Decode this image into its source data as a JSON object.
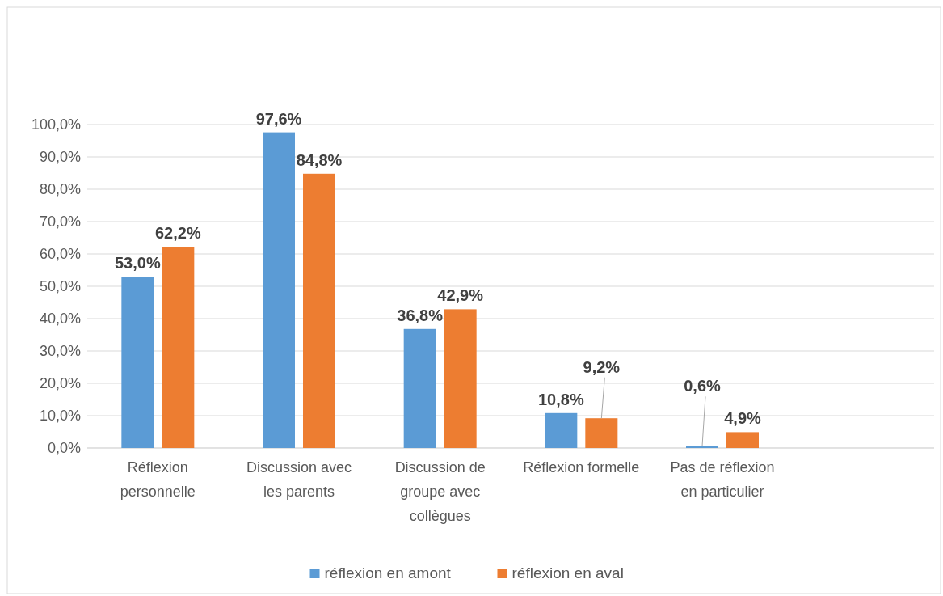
{
  "chart_data": {
    "type": "bar",
    "categories": [
      "Réflexion personnelle",
      "Discussion avec les parents",
      "Discussion de groupe avec collègues",
      "Réflexion formelle",
      "Pas de réflexion en particulier",
      null
    ],
    "series": [
      {
        "name": "réflexion en amont",
        "color": "#5b9bd5",
        "values": [
          53.0,
          97.6,
          36.8,
          10.8,
          0.6,
          null
        ],
        "value_labels": [
          "53,0%",
          "97,6%",
          "36,8%",
          "10,8%",
          "0,6%",
          null
        ]
      },
      {
        "name": "réflexion en aval",
        "color": "#ed7d31",
        "values": [
          62.2,
          84.8,
          42.9,
          9.2,
          4.9,
          null
        ],
        "value_labels": [
          "62,2%",
          "84,8%",
          "42,9%",
          "9,2%",
          "4,9%",
          null
        ]
      }
    ],
    "ylim": [
      0,
      100
    ],
    "yticks": [
      {
        "value": 0,
        "label": "0,0%"
      },
      {
        "value": 10,
        "label": "10,0%"
      },
      {
        "value": 20,
        "label": "20,0%"
      },
      {
        "value": 30,
        "label": "30,0%"
      },
      {
        "value": 40,
        "label": "40,0%"
      },
      {
        "value": 50,
        "label": "50,0%"
      },
      {
        "value": 60,
        "label": "60,0%"
      },
      {
        "value": 70,
        "label": "70,0%"
      },
      {
        "value": 80,
        "label": "80,0%"
      },
      {
        "value": 90,
        "label": "90,0%"
      },
      {
        "value": 100,
        "label": "100,0%"
      }
    ],
    "grid": "y",
    "legend": "bottom"
  }
}
